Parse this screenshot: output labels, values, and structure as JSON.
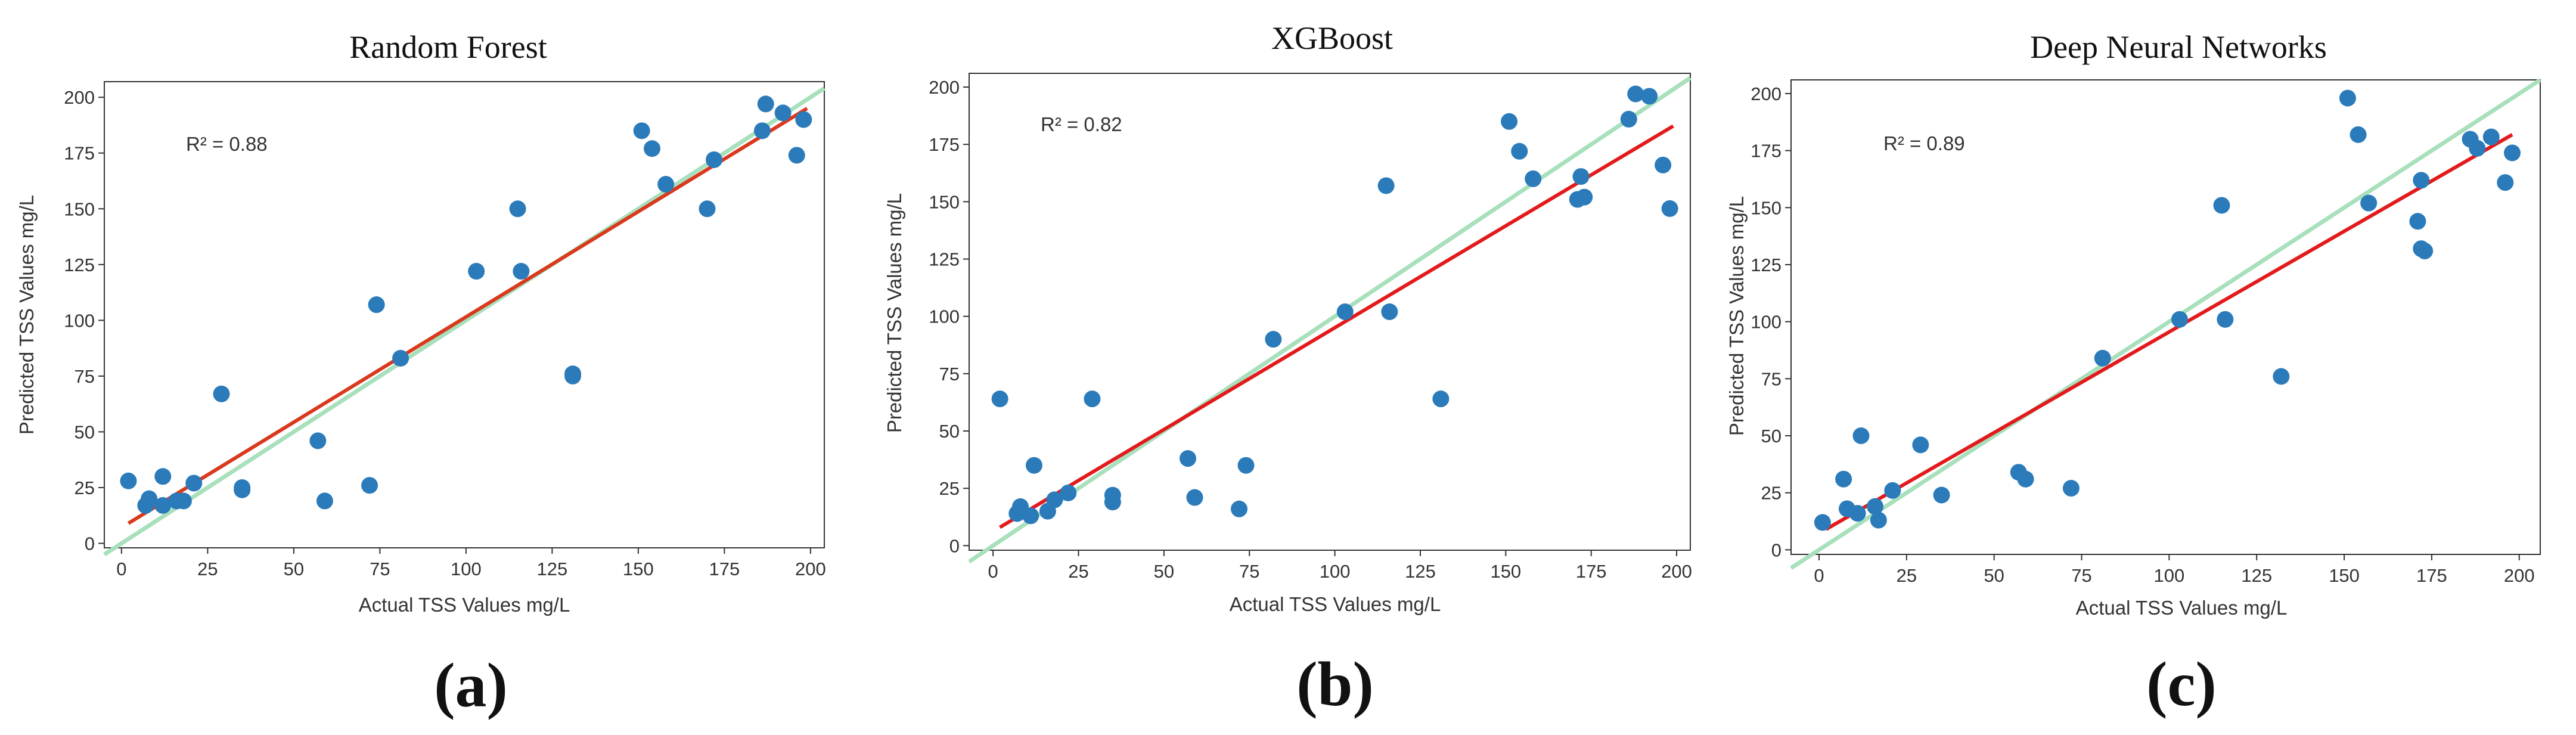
{
  "colors": {
    "point": "#2b7bba",
    "identity_line": "#a8e0bc",
    "rf_fit_line": "#d9391c",
    "fit_line": "#e31a1c",
    "axis": "#333333"
  },
  "chart_data": [
    {
      "type": "scatter",
      "title": "Random Forest",
      "panel_label": "(a)",
      "xlabel": "Actual TSS Values mg/L",
      "ylabel": "Predicted TSS Values mg/L",
      "annotation": "R² = 0.88",
      "xlim": [
        -5,
        204
      ],
      "ylim": [
        -2,
        207
      ],
      "xticks": [
        0,
        25,
        50,
        75,
        100,
        125,
        150,
        175,
        200
      ],
      "yticks": [
        0,
        25,
        50,
        75,
        100,
        125,
        150,
        175,
        200
      ],
      "identity_line": {
        "from": [
          -5,
          -5
        ],
        "to": [
          204,
          204
        ]
      },
      "fit_line": {
        "from": [
          2,
          9
        ],
        "to": [
          199,
          195
        ]
      },
      "points": [
        {
          "x": 2,
          "y": 28
        },
        {
          "x": 7,
          "y": 17
        },
        {
          "x": 8,
          "y": 20
        },
        {
          "x": 12,
          "y": 30
        },
        {
          "x": 12,
          "y": 17
        },
        {
          "x": 16,
          "y": 19
        },
        {
          "x": 18,
          "y": 19
        },
        {
          "x": 21,
          "y": 27
        },
        {
          "x": 29,
          "y": 67
        },
        {
          "x": 35,
          "y": 25
        },
        {
          "x": 35,
          "y": 24
        },
        {
          "x": 57,
          "y": 46
        },
        {
          "x": 59,
          "y": 19
        },
        {
          "x": 72,
          "y": 26
        },
        {
          "x": 74,
          "y": 107
        },
        {
          "x": 81,
          "y": 83
        },
        {
          "x": 103,
          "y": 122
        },
        {
          "x": 115,
          "y": 150
        },
        {
          "x": 116,
          "y": 122
        },
        {
          "x": 131,
          "y": 76
        },
        {
          "x": 131,
          "y": 75
        },
        {
          "x": 151,
          "y": 185
        },
        {
          "x": 154,
          "y": 177
        },
        {
          "x": 158,
          "y": 161
        },
        {
          "x": 170,
          "y": 150
        },
        {
          "x": 172,
          "y": 172
        },
        {
          "x": 186,
          "y": 185
        },
        {
          "x": 187,
          "y": 197
        },
        {
          "x": 192,
          "y": 193
        },
        {
          "x": 196,
          "y": 174
        },
        {
          "x": 198,
          "y": 190
        }
      ]
    },
    {
      "type": "scatter",
      "title": "XGBoost",
      "panel_label": "(b)",
      "xlabel": "Actual TSS Values mg/L",
      "ylabel": "Predicted TSS Values mg/L",
      "annotation": "R² = 0.82",
      "xlim": [
        -7,
        204
      ],
      "ylim": [
        -2,
        206
      ],
      "xticks": [
        0,
        25,
        50,
        75,
        100,
        125,
        150,
        175,
        200
      ],
      "yticks": [
        0,
        25,
        50,
        75,
        100,
        125,
        150,
        175,
        200
      ],
      "identity_line": {
        "from": [
          -7,
          -7
        ],
        "to": [
          204,
          204
        ]
      },
      "fit_line": {
        "from": [
          2,
          8
        ],
        "to": [
          199,
          183
        ]
      },
      "points": [
        {
          "x": 2,
          "y": 64
        },
        {
          "x": 7,
          "y": 14
        },
        {
          "x": 8,
          "y": 17
        },
        {
          "x": 11,
          "y": 13
        },
        {
          "x": 12,
          "y": 35
        },
        {
          "x": 16,
          "y": 15
        },
        {
          "x": 18,
          "y": 20
        },
        {
          "x": 22,
          "y": 23
        },
        {
          "x": 29,
          "y": 64
        },
        {
          "x": 35,
          "y": 22
        },
        {
          "x": 35,
          "y": 19
        },
        {
          "x": 57,
          "y": 38
        },
        {
          "x": 59,
          "y": 21
        },
        {
          "x": 72,
          "y": 16
        },
        {
          "x": 74,
          "y": 35
        },
        {
          "x": 82,
          "y": 90
        },
        {
          "x": 103,
          "y": 102
        },
        {
          "x": 115,
          "y": 157
        },
        {
          "x": 116,
          "y": 102
        },
        {
          "x": 131,
          "y": 64
        },
        {
          "x": 151,
          "y": 185
        },
        {
          "x": 154,
          "y": 172
        },
        {
          "x": 158,
          "y": 160
        },
        {
          "x": 171,
          "y": 151
        },
        {
          "x": 172,
          "y": 161
        },
        {
          "x": 173,
          "y": 152
        },
        {
          "x": 186,
          "y": 186
        },
        {
          "x": 188,
          "y": 197
        },
        {
          "x": 192,
          "y": 196
        },
        {
          "x": 196,
          "y": 166
        },
        {
          "x": 198,
          "y": 147
        }
      ]
    },
    {
      "type": "scatter",
      "title": "Deep Neural Networks",
      "panel_label": "(c)",
      "xlabel": "Actual TSS Values mg/L",
      "ylabel": "Predicted TSS Values mg/L",
      "annotation": "R² = 0.89",
      "xlim": [
        -8,
        206
      ],
      "ylim": [
        -2,
        206
      ],
      "xticks": [
        0,
        25,
        50,
        75,
        100,
        125,
        150,
        175,
        200
      ],
      "yticks": [
        0,
        25,
        50,
        75,
        100,
        125,
        150,
        175,
        200
      ],
      "identity_line": {
        "from": [
          -8,
          -8
        ],
        "to": [
          206,
          206
        ]
      },
      "fit_line": {
        "from": [
          2,
          9
        ],
        "to": [
          198,
          182
        ]
      },
      "points": [
        {
          "x": 1,
          "y": 12
        },
        {
          "x": 7,
          "y": 31
        },
        {
          "x": 8,
          "y": 18
        },
        {
          "x": 11,
          "y": 16
        },
        {
          "x": 12,
          "y": 50
        },
        {
          "x": 16,
          "y": 19
        },
        {
          "x": 17,
          "y": 13
        },
        {
          "x": 21,
          "y": 26
        },
        {
          "x": 29,
          "y": 46
        },
        {
          "x": 35,
          "y": 24
        },
        {
          "x": 57,
          "y": 34
        },
        {
          "x": 59,
          "y": 31
        },
        {
          "x": 72,
          "y": 27
        },
        {
          "x": 81,
          "y": 84
        },
        {
          "x": 103,
          "y": 101
        },
        {
          "x": 115,
          "y": 151
        },
        {
          "x": 116,
          "y": 101
        },
        {
          "x": 132,
          "y": 76
        },
        {
          "x": 151,
          "y": 198
        },
        {
          "x": 154,
          "y": 182
        },
        {
          "x": 157,
          "y": 152
        },
        {
          "x": 171,
          "y": 144
        },
        {
          "x": 172,
          "y": 162
        },
        {
          "x": 172,
          "y": 132
        },
        {
          "x": 173,
          "y": 131
        },
        {
          "x": 186,
          "y": 180
        },
        {
          "x": 188,
          "y": 176
        },
        {
          "x": 192,
          "y": 181
        },
        {
          "x": 196,
          "y": 161
        },
        {
          "x": 198,
          "y": 174
        }
      ]
    }
  ]
}
